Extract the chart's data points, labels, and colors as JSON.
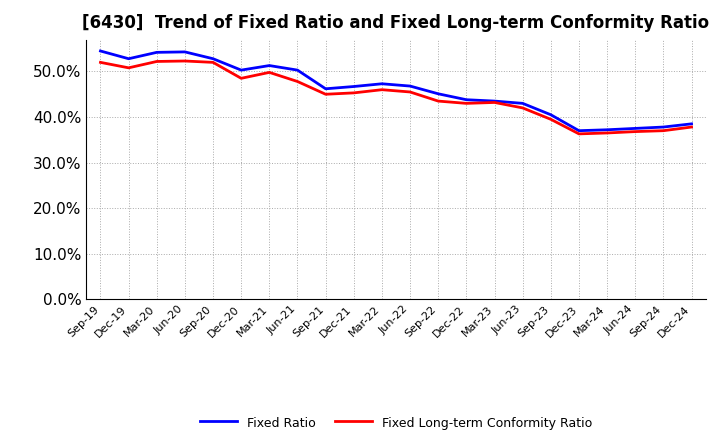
{
  "title": "[6430]  Trend of Fixed Ratio and Fixed Long-term Conformity Ratio",
  "x_labels": [
    "Sep-19",
    "Dec-19",
    "Mar-20",
    "Jun-20",
    "Sep-20",
    "Dec-20",
    "Mar-21",
    "Jun-21",
    "Sep-21",
    "Dec-21",
    "Mar-22",
    "Jun-22",
    "Sep-22",
    "Dec-22",
    "Mar-23",
    "Jun-23",
    "Sep-23",
    "Dec-23",
    "Mar-24",
    "Jun-24",
    "Sep-24",
    "Dec-24"
  ],
  "fixed_ratio": [
    54.5,
    52.8,
    54.2,
    54.3,
    52.8,
    50.3,
    51.3,
    50.3,
    46.2,
    46.7,
    47.3,
    46.8,
    45.1,
    43.8,
    43.5,
    43.0,
    40.5,
    37.0,
    37.2,
    37.5,
    37.8,
    38.5
  ],
  "fixed_lt_ratio": [
    52.0,
    50.8,
    52.2,
    52.3,
    52.0,
    48.5,
    49.8,
    47.8,
    45.0,
    45.3,
    46.0,
    45.5,
    43.5,
    43.0,
    43.2,
    42.0,
    39.5,
    36.3,
    36.5,
    36.8,
    37.0,
    37.8
  ],
  "fixed_ratio_color": "#0000FF",
  "fixed_lt_ratio_color": "#FF0000",
  "ylim": [
    0,
    57
  ],
  "yticks": [
    0.0,
    10.0,
    20.0,
    30.0,
    40.0,
    50.0
  ],
  "background_color": "#FFFFFF",
  "plot_bg_color": "#FFFFFF",
  "grid_color": "#AAAAAA",
  "legend_fixed_ratio": "Fixed Ratio",
  "legend_fixed_lt_ratio": "Fixed Long-term Conformity Ratio",
  "line_width": 2.0,
  "title_fontsize": 12,
  "ytick_fontsize": 11,
  "xtick_fontsize": 8
}
